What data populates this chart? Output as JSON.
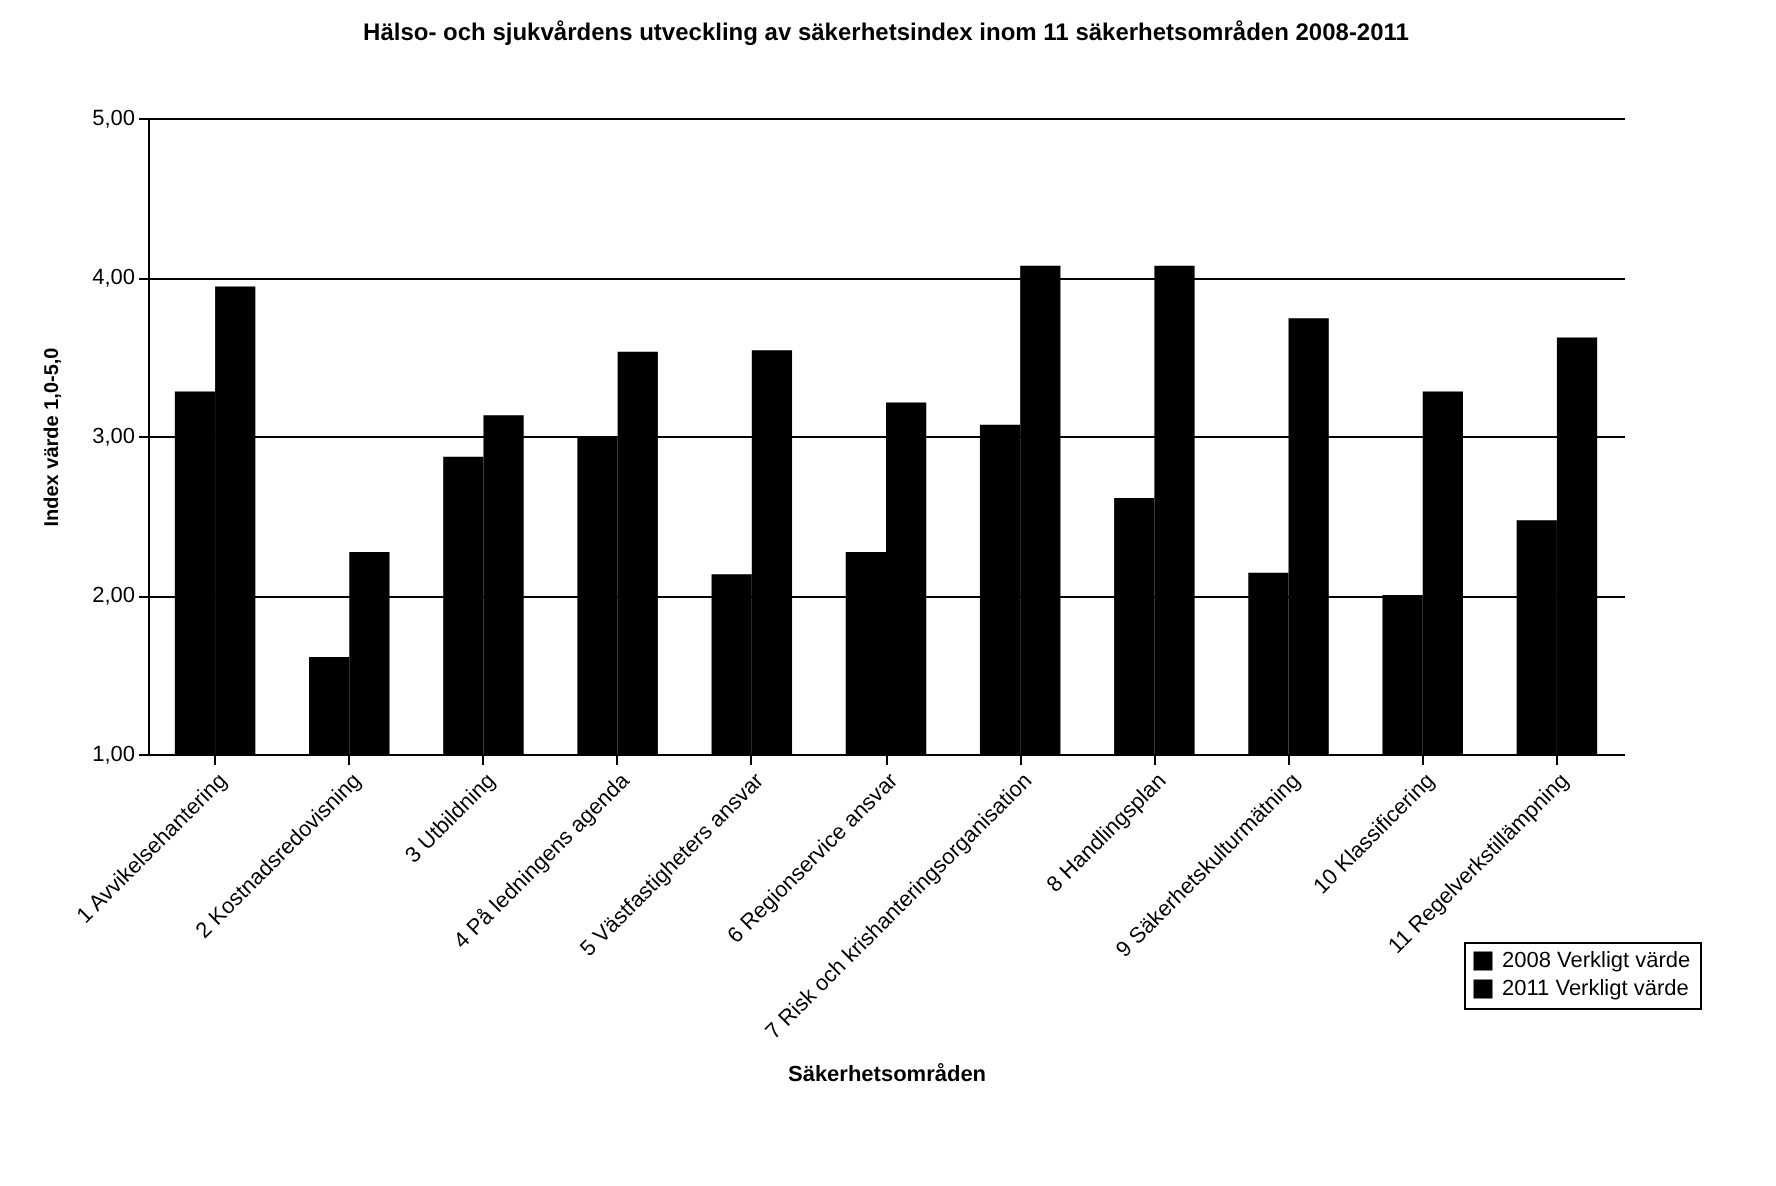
{
  "chart_data": {
    "type": "bar",
    "title": "Hälso- och sjukvårdens utveckling av säkerhetsindex inom 11 säkerhetsområden 2008-2011",
    "xlabel": "Säkerhetsområden",
    "ylabel": "Index värde 1,0-5,0",
    "categories": [
      "1 Avvikelsehantering",
      "2 Kostnadsredovisning",
      "3 Utbildning",
      "4 På ledningens agenda",
      "5 Västfastigheters ansvar",
      "6 Regionservice ansvar",
      "7 Risk och krishanteringsorganisation",
      "8 Handlingsplan",
      "9 Säkerhetskulturmätning",
      "10 Klassificering",
      "11 Regelverkstillämpning"
    ],
    "series": [
      {
        "name": "2008 Verkligt värde",
        "color": "#000000",
        "values": [
          3.28,
          1.61,
          2.87,
          3.0,
          2.13,
          2.27,
          3.07,
          2.61,
          2.14,
          2.0,
          2.47
        ]
      },
      {
        "name": "2011 Verkligt värde",
        "color": "#000000",
        "values": [
          3.94,
          2.27,
          3.13,
          3.53,
          3.54,
          3.21,
          4.07,
          4.07,
          3.74,
          3.28,
          3.62
        ]
      }
    ],
    "ylim": [
      1,
      5
    ],
    "yticks": [
      {
        "value": 1,
        "label": "1,00"
      },
      {
        "value": 2,
        "label": "2,00"
      },
      {
        "value": 3,
        "label": "3,00"
      },
      {
        "value": 4,
        "label": "4,00"
      },
      {
        "value": 5,
        "label": "5,00"
      }
    ],
    "grid": "y",
    "legend": "bottom right"
  }
}
